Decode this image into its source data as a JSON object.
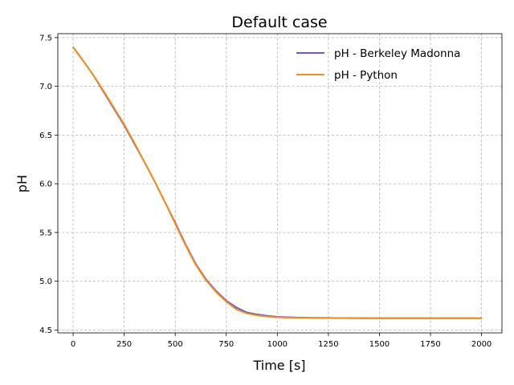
{
  "chart_data": {
    "type": "line",
    "title": "Default case",
    "xlabel": "Time [s]",
    "ylabel": "pH",
    "xlim": [
      -75,
      2100
    ],
    "ylim": [
      4.47,
      7.54
    ],
    "x_ticks": [
      0,
      250,
      500,
      750,
      1000,
      1250,
      1500,
      1750,
      2000
    ],
    "x_tick_labels": [
      "0",
      "250",
      "500",
      "750",
      "1000",
      "1250",
      "1500",
      "1750",
      "2000"
    ],
    "y_ticks": [
      4.5,
      5.0,
      5.5,
      6.0,
      6.5,
      7.0,
      7.5
    ],
    "y_tick_labels": [
      "4.5",
      "5.0",
      "5.5",
      "6.0",
      "6.5",
      "7.0",
      "7.5"
    ],
    "grid": true,
    "legend_position": "top-right",
    "series": [
      {
        "name": "pH - Berkeley Madonna",
        "color": "#6a5acd",
        "x": [
          0,
          50,
          100,
          150,
          200,
          250,
          300,
          350,
          400,
          450,
          500,
          550,
          600,
          650,
          700,
          750,
          800,
          850,
          900,
          950,
          1000,
          1050,
          1100,
          1200,
          1300,
          1400,
          1500,
          1600,
          1700,
          1800,
          1900,
          2000
        ],
        "y": [
          7.4,
          7.26,
          7.11,
          6.94,
          6.77,
          6.6,
          6.41,
          6.22,
          6.02,
          5.81,
          5.6,
          5.38,
          5.18,
          5.02,
          4.9,
          4.8,
          4.73,
          4.68,
          4.66,
          4.645,
          4.635,
          4.63,
          4.627,
          4.624,
          4.622,
          4.621,
          4.62,
          4.62,
          4.62,
          4.62,
          4.62,
          4.62
        ]
      },
      {
        "name": "pH - Python",
        "color": "#f28e1c",
        "x": [
          0,
          50,
          100,
          150,
          200,
          250,
          300,
          350,
          400,
          450,
          500,
          550,
          600,
          650,
          700,
          750,
          800,
          850,
          900,
          950,
          1000,
          1050,
          1100,
          1200,
          1300,
          1400,
          1500,
          1600,
          1700,
          1800,
          1900,
          2000
        ],
        "y": [
          7.4,
          7.26,
          7.11,
          6.95,
          6.78,
          6.61,
          6.42,
          6.22,
          6.02,
          5.81,
          5.59,
          5.37,
          5.17,
          5.01,
          4.89,
          4.79,
          4.71,
          4.67,
          4.65,
          4.638,
          4.63,
          4.626,
          4.624,
          4.622,
          4.621,
          4.62,
          4.62,
          4.62,
          4.62,
          4.62,
          4.62,
          4.62
        ]
      }
    ]
  }
}
